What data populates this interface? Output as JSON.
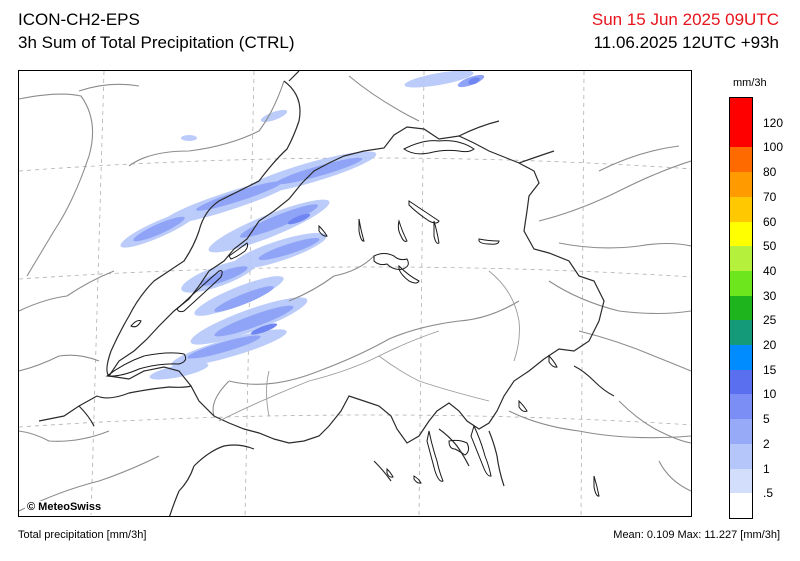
{
  "header": {
    "model": "ICON-CH2-EPS",
    "product": "3h Sum of Total Precipitation (CTRL)",
    "valid_time": "Sun 15 Jun 2025 09UTC",
    "run": "11.06.2025 12UTC +93h"
  },
  "map": {
    "copyright": "© MeteoSwiss",
    "precip_color": "#7f95f5"
  },
  "legend": {
    "unit": "mm/3h",
    "levels": [
      "120",
      "100",
      "80",
      "70",
      "60",
      "50",
      "40",
      "30",
      "25",
      "20",
      "15",
      "10",
      "5",
      "2",
      "1",
      ".5"
    ],
    "colors": [
      "#ff0000",
      "#ff6a00",
      "#ff9a00",
      "#ffc800",
      "#ffff00",
      "#b4f03c",
      "#6ee61e",
      "#1eb41e",
      "#149a78",
      "#008cff",
      "#5a6ef0",
      "#7a8ef5",
      "#96aaf8",
      "#b4c6fa",
      "#d2defc",
      "#ffffff"
    ]
  },
  "footer": {
    "left": "Total precipitation [mm/3h]",
    "right": "Mean:  0.109 Max:  11.227 [mm/3h]"
  }
}
